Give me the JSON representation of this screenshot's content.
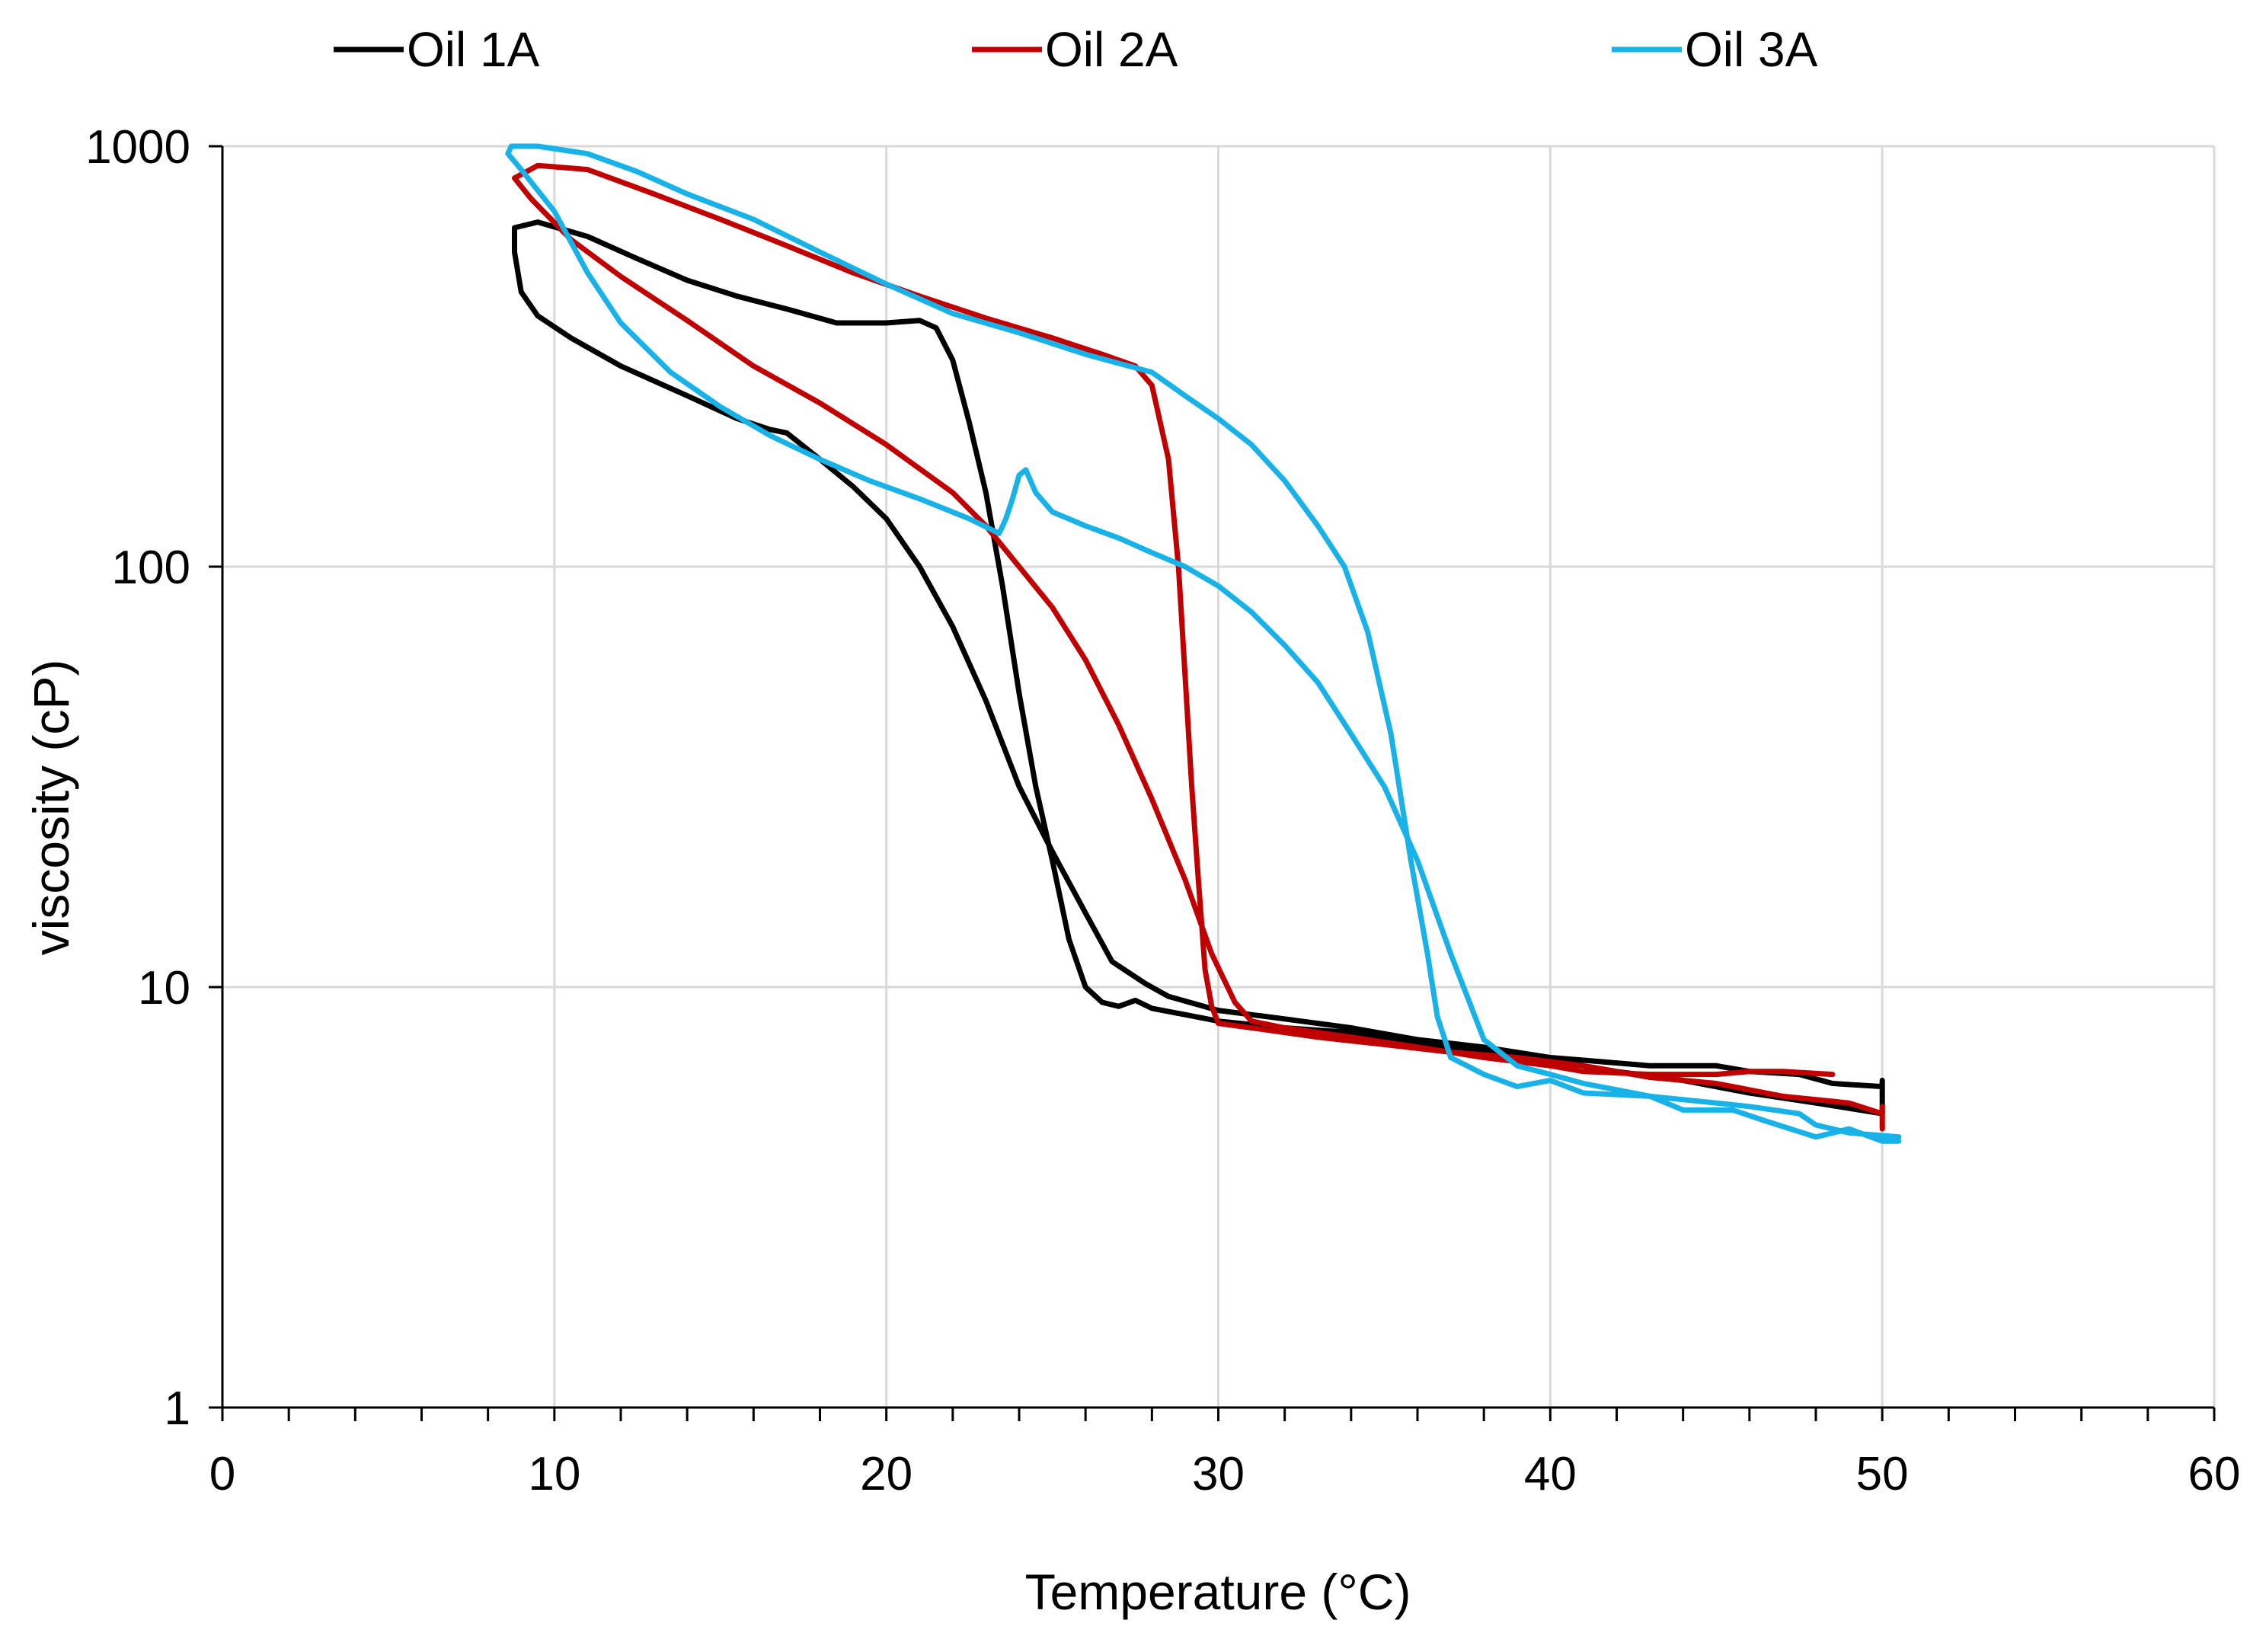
{
  "chart_data": {
    "type": "line",
    "title": "",
    "xlabel": "Temperature (°C)",
    "ylabel": "viscosity (cP)",
    "xlim": [
      0,
      60
    ],
    "ylim": [
      1,
      1000
    ],
    "y_scale": "log",
    "x_ticks": [
      0,
      10,
      20,
      30,
      40,
      50,
      60
    ],
    "x_minor_step": 2,
    "y_ticks": [
      1,
      10,
      100,
      1000
    ],
    "y_tick_labels": [
      "1",
      "10",
      "100",
      "1000"
    ],
    "x_tick_labels": [
      "0",
      "10",
      "20",
      "30",
      "40",
      "50",
      "60"
    ],
    "grid": true,
    "legend_position": "top",
    "series": [
      {
        "name": "Oil 1A",
        "color": "#000000",
        "points": [
          [
            50,
            5.8
          ],
          [
            48.5,
            5.9
          ],
          [
            47.5,
            6.2
          ],
          [
            46,
            6.3
          ],
          [
            45,
            6.5
          ],
          [
            43,
            6.5
          ],
          [
            41,
            6.7
          ],
          [
            40,
            6.8
          ],
          [
            38,
            7.2
          ],
          [
            36,
            7.5
          ],
          [
            34,
            8.0
          ],
          [
            32,
            8.4
          ],
          [
            30,
            8.8
          ],
          [
            28.5,
            9.5
          ],
          [
            27.8,
            10.2
          ],
          [
            26.8,
            11.5
          ],
          [
            26,
            15
          ],
          [
            25,
            21
          ],
          [
            24,
            30
          ],
          [
            23,
            48
          ],
          [
            22,
            72
          ],
          [
            21,
            100
          ],
          [
            20,
            130
          ],
          [
            19,
            155
          ],
          [
            18,
            180
          ],
          [
            17,
            208
          ],
          [
            16.5,
            212
          ],
          [
            15.5,
            225
          ],
          [
            14,
            255
          ],
          [
            12,
            300
          ],
          [
            10.5,
            350
          ],
          [
            9.5,
            395
          ],
          [
            9,
            450
          ],
          [
            8.8,
            560
          ],
          [
            8.8,
            640
          ],
          [
            9.5,
            660
          ],
          [
            11,
            610
          ],
          [
            12.5,
            540
          ],
          [
            14,
            480
          ],
          [
            15.5,
            440
          ],
          [
            17,
            410
          ],
          [
            18.5,
            380
          ],
          [
            20,
            380
          ],
          [
            21,
            385
          ],
          [
            21.5,
            370
          ],
          [
            22,
            310
          ],
          [
            22.5,
            220
          ],
          [
            23,
            150
          ],
          [
            23.5,
            90
          ],
          [
            24,
            50
          ],
          [
            24.5,
            30
          ],
          [
            25,
            20
          ],
          [
            25.5,
            13
          ],
          [
            26,
            10
          ],
          [
            26.5,
            9.2
          ],
          [
            27,
            9.0
          ],
          [
            27.5,
            9.3
          ],
          [
            28,
            8.9
          ],
          [
            29,
            8.6
          ],
          [
            30,
            8.3
          ],
          [
            32,
            8.0
          ],
          [
            34,
            7.8
          ],
          [
            36,
            7.4
          ],
          [
            38,
            7.0
          ],
          [
            40,
            6.7
          ],
          [
            42,
            6.3
          ],
          [
            44,
            6.0
          ],
          [
            46,
            5.6
          ],
          [
            48,
            5.3
          ],
          [
            50,
            5.0
          ],
          [
            50,
            6.0
          ]
        ]
      },
      {
        "name": "Oil 2A",
        "color": "#c00000",
        "points": [
          [
            48.5,
            6.2
          ],
          [
            47,
            6.3
          ],
          [
            46,
            6.3
          ],
          [
            45,
            6.2
          ],
          [
            43,
            6.2
          ],
          [
            41,
            6.3
          ],
          [
            40,
            6.5
          ],
          [
            38,
            6.8
          ],
          [
            36,
            7.2
          ],
          [
            34,
            7.6
          ],
          [
            32,
            8.0
          ],
          [
            31,
            8.3
          ],
          [
            30.5,
            9.2
          ],
          [
            29.8,
            12
          ],
          [
            29,
            18
          ],
          [
            28,
            28
          ],
          [
            27,
            42
          ],
          [
            26,
            60
          ],
          [
            25,
            80
          ],
          [
            24,
            100
          ],
          [
            23,
            125
          ],
          [
            22,
            150
          ],
          [
            20,
            195
          ],
          [
            18,
            245
          ],
          [
            16,
            300
          ],
          [
            14,
            385
          ],
          [
            12,
            490
          ],
          [
            10.5,
            600
          ],
          [
            9.3,
            750
          ],
          [
            8.8,
            840
          ],
          [
            9.5,
            900
          ],
          [
            11,
            880
          ],
          [
            13,
            770
          ],
          [
            15,
            670
          ],
          [
            17,
            580
          ],
          [
            19,
            500
          ],
          [
            21,
            440
          ],
          [
            23,
            390
          ],
          [
            25,
            350
          ],
          [
            26.5,
            320
          ],
          [
            27.5,
            300
          ],
          [
            28,
            270
          ],
          [
            28.5,
            180
          ],
          [
            28.8,
            100
          ],
          [
            29,
            55
          ],
          [
            29.2,
            30
          ],
          [
            29.4,
            18
          ],
          [
            29.6,
            11
          ],
          [
            29.8,
            9.0
          ],
          [
            30,
            8.2
          ],
          [
            31,
            8.0
          ],
          [
            33,
            7.6
          ],
          [
            35,
            7.3
          ],
          [
            37,
            7.0
          ],
          [
            39,
            6.8
          ],
          [
            41,
            6.5
          ],
          [
            43,
            6.1
          ],
          [
            45,
            5.9
          ],
          [
            47,
            5.5
          ],
          [
            49,
            5.3
          ],
          [
            50,
            5.0
          ],
          [
            50,
            4.6
          ],
          [
            50,
            5.2
          ]
        ]
      },
      {
        "name": "Oil 3A",
        "color": "#19b2e8",
        "points": [
          [
            50.5,
            4.4
          ],
          [
            49,
            4.5
          ],
          [
            48,
            4.7
          ],
          [
            47.5,
            5.0
          ],
          [
            46,
            5.2
          ],
          [
            45,
            5.3
          ],
          [
            43,
            5.5
          ],
          [
            41,
            5.9
          ],
          [
            40,
            6.2
          ],
          [
            39,
            6.5
          ],
          [
            38,
            7.5
          ],
          [
            37,
            12
          ],
          [
            36,
            20
          ],
          [
            35,
            30
          ],
          [
            34,
            40
          ],
          [
            33,
            53
          ],
          [
            32,
            65
          ],
          [
            31,
            78
          ],
          [
            30,
            90
          ],
          [
            29,
            100
          ],
          [
            28,
            108
          ],
          [
            27,
            117
          ],
          [
            26,
            125
          ],
          [
            25,
            135
          ],
          [
            24.5,
            150
          ],
          [
            24.2,
            170
          ],
          [
            24,
            165
          ],
          [
            23.8,
            145
          ],
          [
            23.6,
            130
          ],
          [
            23.4,
            120
          ],
          [
            22.5,
            130
          ],
          [
            21,
            145
          ],
          [
            19.5,
            160
          ],
          [
            18,
            180
          ],
          [
            16.5,
            205
          ],
          [
            15,
            240
          ],
          [
            13.5,
            290
          ],
          [
            12,
            380
          ],
          [
            11,
            500
          ],
          [
            10,
            700
          ],
          [
            9,
            880
          ],
          [
            8.6,
            960
          ],
          [
            8.7,
            1000
          ],
          [
            9.5,
            1000
          ],
          [
            11,
            960
          ],
          [
            12.5,
            870
          ],
          [
            14,
            770
          ],
          [
            16,
            670
          ],
          [
            18,
            560
          ],
          [
            20,
            470
          ],
          [
            22,
            400
          ],
          [
            24,
            360
          ],
          [
            26,
            320
          ],
          [
            28,
            290
          ],
          [
            29,
            255
          ],
          [
            30,
            225
          ],
          [
            31,
            195
          ],
          [
            32,
            160
          ],
          [
            33,
            125
          ],
          [
            33.8,
            100
          ],
          [
            34.5,
            70
          ],
          [
            35.2,
            40
          ],
          [
            35.8,
            20
          ],
          [
            36.3,
            12
          ],
          [
            36.6,
            8.5
          ],
          [
            37,
            6.8
          ],
          [
            38,
            6.2
          ],
          [
            39,
            5.8
          ],
          [
            40,
            6.0
          ],
          [
            41,
            5.6
          ],
          [
            43,
            5.5
          ],
          [
            44,
            5.1
          ],
          [
            45.5,
            5.1
          ],
          [
            46.5,
            4.8
          ],
          [
            48,
            4.4
          ],
          [
            49,
            4.6
          ],
          [
            50,
            4.3
          ],
          [
            50.5,
            4.3
          ]
        ]
      }
    ]
  }
}
